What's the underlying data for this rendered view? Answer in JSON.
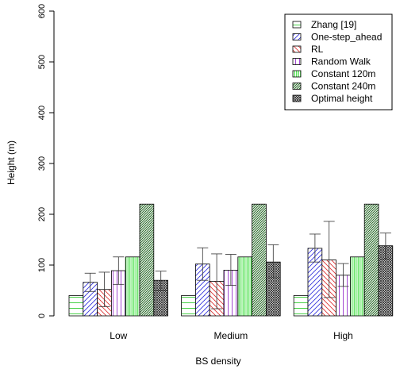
{
  "chart_data": {
    "type": "bar",
    "xlabel": "BS density",
    "ylabel": "Height (m)",
    "ylim": [
      0,
      600
    ],
    "yticks": [
      0,
      100,
      200,
      300,
      400,
      500,
      600
    ],
    "grid": false,
    "legend_position": "top-right",
    "categories": [
      "Low",
      "Medium",
      "High"
    ],
    "series": [
      {
        "name": "Zhang [19]",
        "color": "#33cc33",
        "pattern": "horizontal",
        "values": [
          40,
          40,
          40
        ],
        "error": [
          null,
          null,
          null
        ]
      },
      {
        "name": "One-step_ahead",
        "color": "#3333dd",
        "pattern": "diagonal-right",
        "values": [
          66,
          102,
          133
        ],
        "error": [
          [
            48,
            84
          ],
          [
            70,
            134
          ],
          [
            106,
            161
          ]
        ]
      },
      {
        "name": "RL",
        "color": "#dd3333",
        "pattern": "diagonal-left",
        "values": [
          52,
          68,
          110
        ],
        "error": [
          [
            18,
            86
          ],
          [
            14,
            122
          ],
          [
            36,
            186
          ]
        ]
      },
      {
        "name": "Random Walk",
        "color": "#9933cc",
        "pattern": "vertical",
        "values": [
          89,
          90,
          80
        ],
        "error": [
          [
            62,
            116
          ],
          [
            60,
            121
          ],
          [
            58,
            103
          ]
        ]
      },
      {
        "name": "Constant 120m",
        "color": "#33dd33",
        "pattern": "vertical-dense",
        "values": [
          116,
          116,
          116
        ],
        "error": [
          null,
          null,
          null
        ]
      },
      {
        "name": "Constant 240m",
        "color": "#226622",
        "pattern": "diagonal-dense",
        "values": [
          220,
          220,
          220
        ],
        "error": [
          null,
          null,
          null
        ]
      },
      {
        "name": "Optimal height",
        "color": "#222222",
        "pattern": "crosshatch",
        "values": [
          70,
          106,
          138
        ],
        "error": [
          [
            50,
            88
          ],
          [
            75,
            140
          ],
          [
            112,
            163
          ]
        ]
      }
    ]
  }
}
